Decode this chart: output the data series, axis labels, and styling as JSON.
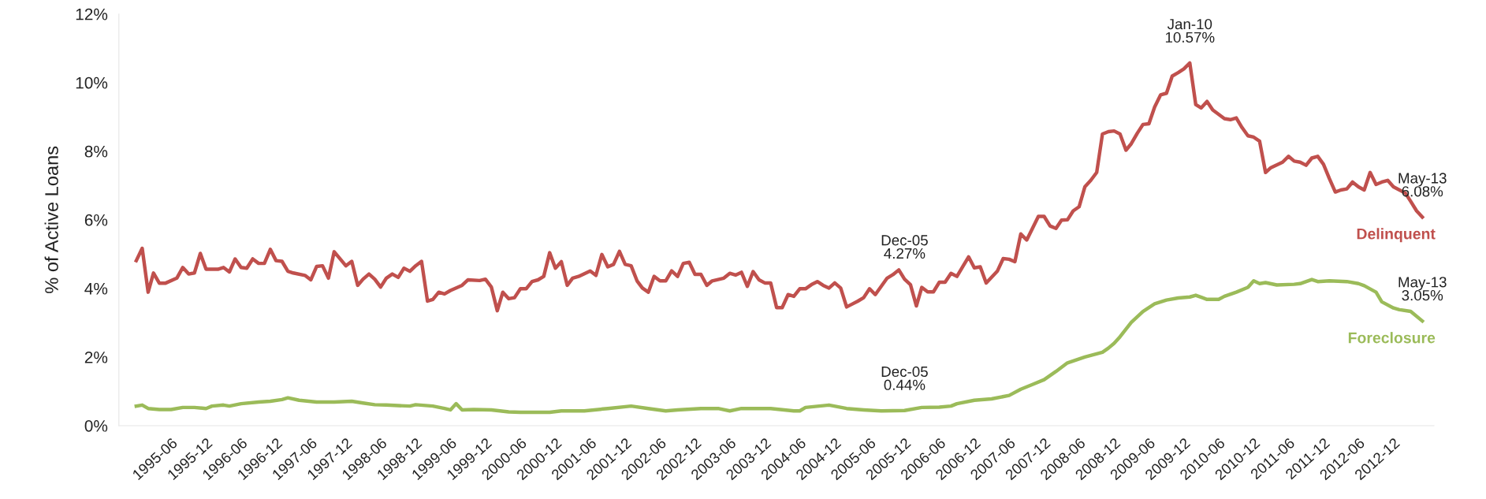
{
  "chart_data": {
    "type": "line",
    "ylabel": "% of Active Loans",
    "xlim": [
      "1994-09",
      "2013-07"
    ],
    "xticks": [
      "1995-06",
      "1995-12",
      "1996-06",
      "1996-12",
      "1997-06",
      "1997-12",
      "1998-06",
      "1998-12",
      "1999-06",
      "1999-12",
      "2000-06",
      "2000-12",
      "2001-06",
      "2001-12",
      "2002-06",
      "2002-12",
      "2003-06",
      "2003-12",
      "2004-06",
      "2004-12",
      "2005-06",
      "2005-12",
      "2006-06",
      "2006-12",
      "2007-06",
      "2007-12",
      "2008-06",
      "2008-12",
      "2009-06",
      "2009-12",
      "2010-06",
      "2010-12",
      "2011-06",
      "2011-12",
      "2012-06",
      "2012-12"
    ],
    "ylim": [
      0,
      12
    ],
    "yticks": [
      {
        "value": 0,
        "label": "0%"
      },
      {
        "value": 2,
        "label": "2%"
      },
      {
        "value": 4,
        "label": "4%"
      },
      {
        "value": 6,
        "label": "6%"
      },
      {
        "value": 8,
        "label": "8%"
      },
      {
        "value": 10,
        "label": "10%"
      },
      {
        "value": 12,
        "label": "12%"
      }
    ],
    "grid": false,
    "legend": false,
    "marker": "none",
    "line_style": "solid",
    "series": [
      {
        "name": "Delinquent",
        "color": "#c0504d",
        "x": [
          "1994-12",
          "1995-01",
          "1995-02",
          "1995-03",
          "1995-04",
          "1995-05",
          "1995-07",
          "1995-08",
          "1995-09",
          "1995-10",
          "1995-11",
          "1995-12",
          "1996-02",
          "1996-03",
          "1996-04",
          "1996-05",
          "1996-06",
          "1996-07",
          "1996-08",
          "1996-09",
          "1996-10",
          "1996-11",
          "1996-12",
          "1997-01",
          "1997-02",
          "1997-03",
          "1997-05",
          "1997-06",
          "1997-07",
          "1997-08",
          "1997-09",
          "1997-10",
          "1997-11",
          "1997-12",
          "1998-01",
          "1998-02",
          "1998-03",
          "1998-04",
          "1998-05",
          "1998-06",
          "1998-07",
          "1998-08",
          "1998-09",
          "1998-10",
          "1998-11",
          "1998-12",
          "1999-01",
          "1999-02",
          "1999-03",
          "1999-04",
          "1999-05",
          "1999-06",
          "1999-08",
          "1999-09",
          "1999-11",
          "1999-12",
          "2000-01",
          "2000-02",
          "2000-03",
          "2000-04",
          "2000-05",
          "2000-06",
          "2000-07",
          "2000-08",
          "2000-09",
          "2000-10",
          "2000-11",
          "2000-12",
          "2001-01",
          "2001-02",
          "2001-03",
          "2001-04",
          "2001-06",
          "2001-07",
          "2001-08",
          "2001-09",
          "2001-10",
          "2001-11",
          "2001-12",
          "2002-01",
          "2002-02",
          "2002-03",
          "2002-04",
          "2002-05",
          "2002-06",
          "2002-07",
          "2002-08",
          "2002-09",
          "2002-10",
          "2002-11",
          "2002-12",
          "2003-01",
          "2003-02",
          "2003-03",
          "2003-05",
          "2003-06",
          "2003-07",
          "2003-08",
          "2003-09",
          "2003-10",
          "2003-11",
          "2003-12",
          "2004-01",
          "2004-02",
          "2004-03",
          "2004-04",
          "2004-05",
          "2004-06",
          "2004-07",
          "2004-08",
          "2004-09",
          "2004-10",
          "2004-11",
          "2004-12",
          "2005-01",
          "2005-02",
          "2005-03",
          "2005-04",
          "2005-05",
          "2005-06",
          "2005-07",
          "2005-08",
          "2005-09",
          "2005-10",
          "2005-11",
          "2005-12",
          "2006-01",
          "2006-02",
          "2006-03",
          "2006-04",
          "2006-05",
          "2006-06",
          "2006-07",
          "2006-08",
          "2006-09",
          "2006-10",
          "2006-11",
          "2006-12",
          "2007-01",
          "2007-02",
          "2007-04",
          "2007-05",
          "2007-06",
          "2007-07",
          "2007-08",
          "2007-09",
          "2007-10",
          "2007-11",
          "2007-12",
          "2008-01",
          "2008-02",
          "2008-03",
          "2008-04",
          "2008-05",
          "2008-06",
          "2008-07",
          "2008-08",
          "2008-09",
          "2008-10",
          "2008-11",
          "2008-12",
          "2009-01",
          "2009-02",
          "2009-03",
          "2009-04",
          "2009-05",
          "2009-06",
          "2009-07",
          "2009-08",
          "2009-09",
          "2009-10",
          "2009-11",
          "2009-12",
          "2010-01",
          "2010-02",
          "2010-03",
          "2010-04",
          "2010-05",
          "2010-07",
          "2010-08",
          "2010-09",
          "2010-10",
          "2010-11",
          "2010-12",
          "2011-01",
          "2011-02",
          "2011-03",
          "2011-05",
          "2011-06",
          "2011-07",
          "2011-08",
          "2011-09",
          "2011-10",
          "2011-11",
          "2011-12",
          "2012-01",
          "2012-02",
          "2012-03",
          "2012-04",
          "2012-05",
          "2012-06",
          "2012-07",
          "2012-08",
          "2012-09",
          "2012-10",
          "2012-11",
          "2012-12",
          "2013-02",
          "2013-03",
          "2013-04",
          "2013-05"
        ],
        "values": [
          4.81,
          5.17,
          3.89,
          4.45,
          4.15,
          4.15,
          4.3,
          4.61,
          4.42,
          4.45,
          5.02,
          4.56,
          4.56,
          4.61,
          4.48,
          4.86,
          4.61,
          4.59,
          4.86,
          4.73,
          4.73,
          5.14,
          4.81,
          4.79,
          4.5,
          4.45,
          4.38,
          4.25,
          4.64,
          4.66,
          4.3,
          5.07,
          4.86,
          4.66,
          4.79,
          4.09,
          4.27,
          4.42,
          4.27,
          4.04,
          4.3,
          4.42,
          4.32,
          4.59,
          4.5,
          4.66,
          4.79,
          3.63,
          3.68,
          3.89,
          3.84,
          3.94,
          4.09,
          4.25,
          4.23,
          4.27,
          4.04,
          3.35,
          3.89,
          3.7,
          3.73,
          3.99,
          3.99,
          4.2,
          4.25,
          4.35,
          5.04,
          4.59,
          4.78,
          4.09,
          4.3,
          4.35,
          4.51,
          4.38,
          4.99,
          4.63,
          4.7,
          5.08,
          4.7,
          4.66,
          4.22,
          4.01,
          3.89,
          4.35,
          4.22,
          4.22,
          4.51,
          4.35,
          4.73,
          4.76,
          4.41,
          4.41,
          4.09,
          4.22,
          4.3,
          4.44,
          4.39,
          4.47,
          4.06,
          4.49,
          4.25,
          4.16,
          4.16,
          3.44,
          3.44,
          3.82,
          3.77,
          3.99,
          3.99,
          4.11,
          4.2,
          4.09,
          4.01,
          4.16,
          4.01,
          3.46,
          3.54,
          3.63,
          3.73,
          3.99,
          3.82,
          4.06,
          4.3,
          4.4,
          4.54,
          4.27,
          4.11,
          3.49,
          4.03,
          3.9,
          3.9,
          4.18,
          4.18,
          4.44,
          4.35,
          4.63,
          4.92,
          4.6,
          4.63,
          4.16,
          4.51,
          4.87,
          4.85,
          4.78,
          5.59,
          5.41,
          5.75,
          6.1,
          6.1,
          5.82,
          5.75,
          5.99,
          6.0,
          6.26,
          6.38,
          6.96,
          7.15,
          7.38,
          8.5,
          8.57,
          8.59,
          8.5,
          8.03,
          8.22,
          8.52,
          8.78,
          8.8,
          9.29,
          9.64,
          9.69,
          10.19,
          10.29,
          10.4,
          10.57,
          9.36,
          9.26,
          9.45,
          9.2,
          8.95,
          8.92,
          8.97,
          8.69,
          8.45,
          8.41,
          8.29,
          7.38,
          7.52,
          7.68,
          7.85,
          7.71,
          7.68,
          7.59,
          7.8,
          7.85,
          7.62,
          7.2,
          6.81,
          6.87,
          6.9,
          7.1,
          6.96,
          6.87,
          7.38,
          7.03,
          7.1,
          7.15,
          6.96,
          6.78,
          6.54,
          6.26,
          6.08
        ]
      },
      {
        "name": "Foreclosure",
        "color": "#9bbb59",
        "x": [
          "1994-12",
          "1995-01",
          "1995-02",
          "1995-04",
          "1995-06",
          "1995-08",
          "1995-10",
          "1995-12",
          "1996-01",
          "1996-03",
          "1996-04",
          "1996-06",
          "1996-09",
          "1996-11",
          "1997-01",
          "1997-02",
          "1997-04",
          "1997-07",
          "1997-10",
          "1998-01",
          "1998-03",
          "1998-05",
          "1998-07",
          "1998-11",
          "1998-12",
          "1999-03",
          "1999-05",
          "1999-06",
          "1999-07",
          "1999-08",
          "1999-10",
          "2000-01",
          "2000-04",
          "2000-06",
          "2000-11",
          "2001-01",
          "2001-05",
          "2001-09",
          "2002-01",
          "2002-04",
          "2002-07",
          "2002-09",
          "2003-01",
          "2003-04",
          "2003-06",
          "2003-08",
          "2004-01",
          "2004-05",
          "2004-06",
          "2004-07",
          "2004-11",
          "2005-02",
          "2005-05",
          "2005-08",
          "2005-12",
          "2006-03",
          "2006-06",
          "2006-08",
          "2006-09",
          "2006-12",
          "2007-03",
          "2007-06",
          "2007-08",
          "2007-10",
          "2007-12",
          "2008-02",
          "2008-04",
          "2008-07",
          "2008-10",
          "2008-11",
          "2008-12",
          "2009-01",
          "2009-03",
          "2009-05",
          "2009-07",
          "2009-09",
          "2009-11",
          "2010-01",
          "2010-02",
          "2010-04",
          "2010-06",
          "2010-07",
          "2010-09",
          "2010-11",
          "2010-12",
          "2011-01",
          "2011-02",
          "2011-04",
          "2011-07",
          "2011-08",
          "2011-10",
          "2011-11",
          "2012-01",
          "2012-04",
          "2012-06",
          "2012-07",
          "2012-09",
          "2012-10",
          "2012-12",
          "2013-01",
          "2013-03",
          "2013-05"
        ],
        "values": [
          0.57,
          0.6,
          0.5,
          0.47,
          0.47,
          0.53,
          0.53,
          0.5,
          0.57,
          0.6,
          0.57,
          0.64,
          0.69,
          0.71,
          0.76,
          0.81,
          0.74,
          0.69,
          0.69,
          0.71,
          0.66,
          0.61,
          0.6,
          0.57,
          0.61,
          0.57,
          0.5,
          0.46,
          0.64,
          0.46,
          0.47,
          0.46,
          0.4,
          0.39,
          0.39,
          0.43,
          0.43,
          0.5,
          0.57,
          0.5,
          0.43,
          0.46,
          0.5,
          0.5,
          0.43,
          0.5,
          0.5,
          0.43,
          0.43,
          0.53,
          0.6,
          0.5,
          0.46,
          0.43,
          0.44,
          0.53,
          0.54,
          0.57,
          0.64,
          0.74,
          0.78,
          0.88,
          1.06,
          1.2,
          1.34,
          1.58,
          1.83,
          2.0,
          2.14,
          2.26,
          2.4,
          2.59,
          3.01,
          3.33,
          3.55,
          3.66,
          3.72,
          3.75,
          3.8,
          3.68,
          3.68,
          3.77,
          3.89,
          4.03,
          4.22,
          4.14,
          4.17,
          4.1,
          4.12,
          4.14,
          4.26,
          4.2,
          4.22,
          4.2,
          4.14,
          4.08,
          3.89,
          3.61,
          3.43,
          3.38,
          3.33,
          3.05
        ]
      }
    ],
    "annotations": [
      {
        "text": "Dec-05\n4.27%",
        "x": "2005-12",
        "y": 4.27
      },
      {
        "text": "Jan-10\n10.57%",
        "x": "2010-01",
        "y": 10.57
      },
      {
        "text": "May-13\n6.08%",
        "x": "2013-05",
        "y": 6.08
      },
      {
        "text": "Dec-05\n0.44%",
        "x": "2005-12",
        "y": 0.44
      },
      {
        "text": "May-13\n3.05%",
        "x": "2013-05",
        "y": 3.05
      }
    ]
  }
}
